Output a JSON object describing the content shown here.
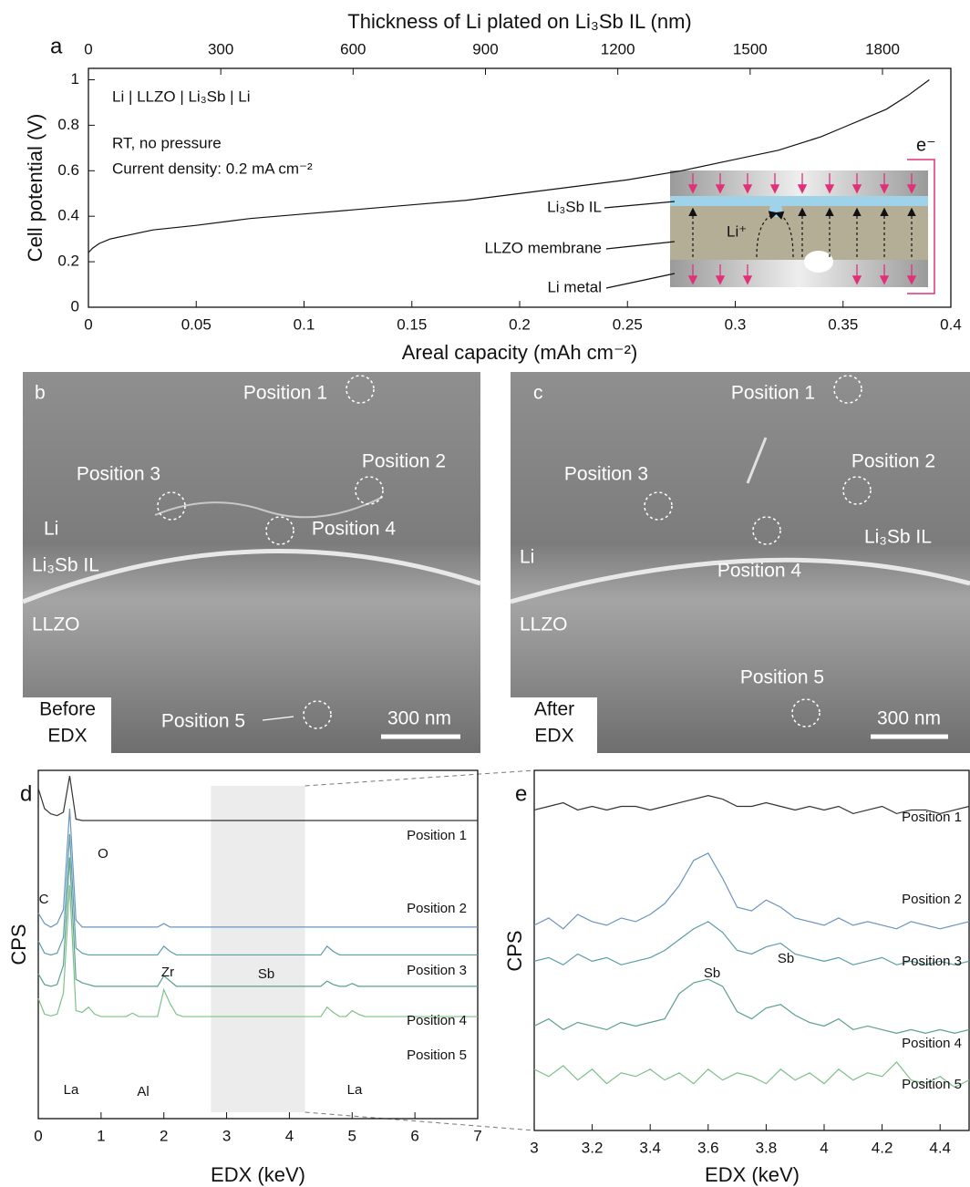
{
  "chart_data": [
    {
      "type": "line",
      "panel": "a",
      "x2label": "Thickness of Li plated on Li₃Sb IL (nm)",
      "xlabel": "Areal capacity (mAh cm⁻²)",
      "ylabel": "Cell potential (V)",
      "annotations": [
        "Li | LLZO | Li₃Sb | Li",
        "RT, no pressure",
        "Current density: 0.2 mA cm⁻²"
      ],
      "inset": {
        "labels": [
          "Li₃Sb IL",
          "LLZO membrane",
          "Li metal"
        ],
        "ion": "Li⁺",
        "electron": "e⁻"
      },
      "x": [
        0,
        0.002,
        0.005,
        0.01,
        0.02,
        0.03,
        0.05,
        0.075,
        0.1,
        0.125,
        0.15,
        0.175,
        0.2,
        0.225,
        0.25,
        0.275,
        0.3,
        0.32,
        0.34,
        0.35,
        0.36,
        0.37,
        0.38,
        0.39
      ],
      "values": [
        0.24,
        0.26,
        0.28,
        0.3,
        0.32,
        0.34,
        0.36,
        0.39,
        0.41,
        0.43,
        0.45,
        0.47,
        0.5,
        0.53,
        0.56,
        0.6,
        0.65,
        0.69,
        0.75,
        0.79,
        0.83,
        0.87,
        0.93,
        1.0
      ],
      "color": "#111111",
      "xlim": [
        0,
        0.4
      ],
      "xticks": [
        0,
        0.05,
        0.1,
        0.15,
        0.2,
        0.25,
        0.3,
        0.35,
        0.4
      ],
      "ylim": [
        0,
        1.05
      ],
      "yticks": [
        0,
        0.2,
        0.4,
        0.6,
        0.8,
        1
      ],
      "x2lim": [
        0,
        1955
      ],
      "x2ticks": [
        0,
        300,
        600,
        900,
        1200,
        1500,
        1800
      ]
    },
    {
      "type": "line",
      "panel": "d",
      "xlabel": "EDX (keV)",
      "ylabel": "CPS",
      "annotations": [
        "C",
        "O",
        "Zr",
        "Sb",
        "La",
        "Al",
        "La"
      ],
      "highlight": [
        2.75,
        4.25
      ],
      "x": [
        0,
        0.1,
        0.2,
        0.3,
        0.4,
        0.5,
        0.6,
        0.7,
        0.8,
        0.9,
        1,
        1.1,
        1.2,
        1.3,
        1.4,
        1.5,
        1.6,
        1.7,
        1.8,
        1.9,
        2,
        2.1,
        2.2,
        2.3,
        2.4,
        2.5,
        2.6,
        2.7,
        2.8,
        2.9,
        3,
        3.1,
        3.2,
        3.3,
        3.4,
        3.5,
        3.6,
        3.7,
        3.8,
        3.9,
        4,
        4.1,
        4.2,
        4.3,
        4.4,
        4.5,
        4.6,
        4.7,
        4.8,
        4.9,
        5,
        5.1,
        5.2,
        5.3,
        5.4,
        5.5,
        5.6,
        5.7,
        5.8,
        5.9,
        6,
        6.1,
        6.2,
        6.3,
        6.4,
        6.5,
        6.6,
        6.7,
        6.8,
        6.9,
        7
      ],
      "series": [
        {
          "name": "Position 1",
          "color": "#333333",
          "values": [
            94.8,
            89,
            87.5,
            87,
            88,
            98.4,
            86,
            85.6,
            85.6,
            85.6,
            85.6,
            85.6,
            85.6,
            85.6,
            85.6,
            85.6,
            85.6,
            85.6,
            85.6,
            85.6,
            85.6,
            85.6,
            85.6,
            85.6,
            85.6,
            85.6,
            85.6,
            85.6,
            85.6,
            85.6,
            85.6,
            85.6,
            85.6,
            85.6,
            85.6,
            85.6,
            85.6,
            85.6,
            85.6,
            85.6,
            85.6,
            85.6,
            85.6,
            85.6,
            85.6,
            85.6,
            85.6,
            85.6,
            85.6,
            85.6,
            85.6,
            85.6,
            85.6,
            85.6,
            85.6,
            85.6,
            85.6,
            85.6,
            85.6,
            85.6,
            85.6,
            85.6,
            85.6,
            85.6,
            85.6,
            85.6,
            85.6,
            85.6,
            85.6,
            85.6,
            85.6
          ]
        },
        {
          "name": "Position 2",
          "color": "#6a93c0",
          "values": [
            59,
            56,
            55,
            56,
            60,
            89,
            57,
            55,
            55,
            55,
            55,
            55,
            55,
            55,
            55,
            55,
            55,
            55,
            55,
            55,
            56,
            55,
            55,
            55,
            55,
            55,
            55,
            55,
            55,
            55,
            55,
            55,
            55,
            55,
            55,
            55,
            55,
            55,
            55,
            55,
            55,
            55,
            55,
            55,
            55,
            55,
            55,
            55,
            55,
            55,
            55,
            55,
            55,
            55,
            55,
            55,
            55,
            55,
            55,
            55,
            55,
            55,
            55,
            55,
            55,
            55,
            55,
            55,
            55,
            55,
            55
          ]
        },
        {
          "name": "Position 3",
          "color": "#5a9ca8",
          "values": [
            51,
            47.5,
            47,
            47.5,
            52,
            81.7,
            49,
            47.5,
            47,
            47,
            47,
            47,
            47,
            47,
            47,
            47,
            47,
            47,
            47,
            47,
            49.5,
            48,
            47,
            47,
            47,
            47,
            47,
            47,
            47,
            47,
            47,
            47,
            47,
            47,
            47,
            47,
            47,
            47,
            47,
            47,
            47,
            47,
            47,
            47,
            47,
            47,
            49.5,
            48,
            47,
            47,
            47,
            47,
            47,
            47,
            47,
            47,
            47,
            47,
            47,
            47,
            47,
            47,
            47,
            47,
            47,
            47,
            47,
            47,
            47,
            47,
            47
          ]
        },
        {
          "name": "Position 4",
          "color": "#5aa090",
          "values": [
            41.6,
            38.5,
            38,
            38.5,
            44,
            75,
            40,
            39,
            38.5,
            38,
            38,
            38,
            38,
            38,
            38,
            38,
            38,
            38,
            38,
            38,
            41,
            39.5,
            38,
            38,
            38,
            38,
            38,
            38,
            38,
            38,
            38,
            38,
            38,
            38,
            38,
            38,
            38,
            38,
            38,
            38,
            38,
            38,
            38,
            38,
            38,
            38,
            39.5,
            38.5,
            38,
            38,
            38.8,
            38,
            38,
            38,
            38,
            38,
            38,
            38,
            38,
            38,
            38,
            38,
            38,
            38,
            38,
            38,
            38,
            38,
            38,
            38,
            38
          ]
        },
        {
          "name": "Position 5",
          "color": "#7fc08a",
          "values": [
            34.5,
            30,
            29.5,
            30,
            36,
            67,
            31,
            30.5,
            32,
            30,
            29.3,
            29.3,
            29.3,
            29.3,
            29.3,
            30.3,
            29.3,
            29.3,
            29.3,
            29.3,
            37,
            33,
            30,
            29.3,
            29.3,
            29.3,
            29.3,
            29.3,
            29.3,
            29.3,
            29.3,
            29.3,
            29.3,
            29.3,
            29.3,
            29.3,
            29.3,
            29.3,
            29.3,
            29.3,
            29.3,
            29.3,
            29.3,
            29.3,
            29.3,
            29.3,
            32,
            30.5,
            29.3,
            29.3,
            31,
            30,
            29.3,
            29.3,
            29.3,
            29.3,
            29.3,
            29.3,
            29.3,
            29.3,
            29.3,
            29.3,
            29.3,
            29.3,
            29.3,
            29.3,
            29.3,
            29.3,
            29.3,
            29.3,
            29.3
          ]
        }
      ],
      "xlim": [
        0,
        7
      ],
      "xticks": [
        0,
        1,
        2,
        3,
        4,
        5,
        6,
        7
      ],
      "ylim": [
        0,
        100
      ]
    },
    {
      "type": "line",
      "panel": "e",
      "xlabel": "EDX (keV)",
      "ylabel": "CPS",
      "annotations": [
        "Sb",
        "Sb"
      ],
      "x": [
        3,
        3.05,
        3.1,
        3.15,
        3.2,
        3.25,
        3.3,
        3.35,
        3.4,
        3.45,
        3.5,
        3.55,
        3.6,
        3.65,
        3.7,
        3.75,
        3.8,
        3.85,
        3.9,
        3.95,
        4,
        4.05,
        4.1,
        4.15,
        4.2,
        4.25,
        4.3,
        4.35,
        4.4,
        4.45,
        4.5
      ],
      "series": [
        {
          "name": "Position 1",
          "color": "#333333",
          "values": [
            89,
            90,
            91,
            89,
            90,
            89,
            90,
            90,
            89,
            90,
            91,
            92,
            93,
            92,
            90,
            90,
            91,
            90,
            89,
            90,
            89,
            90,
            88,
            89,
            90,
            88,
            89,
            89,
            88,
            89,
            90
          ]
        },
        {
          "name": "Position 2",
          "color": "#6a93c0",
          "values": [
            57,
            59,
            56,
            60,
            58,
            57,
            59,
            58,
            60,
            63,
            68,
            75,
            77,
            70,
            62,
            61,
            64,
            62,
            59,
            58,
            57,
            59,
            57,
            58,
            57,
            56,
            58,
            57,
            56,
            57,
            58
          ]
        },
        {
          "name": "Position 3",
          "color": "#5a9ca8",
          "values": [
            47,
            48,
            46,
            49,
            47,
            48,
            46,
            47,
            48,
            50,
            53,
            56,
            58,
            55,
            50,
            49,
            51,
            52,
            49,
            48,
            47,
            48,
            46,
            47,
            48,
            46,
            47,
            46,
            47,
            46,
            47
          ]
        },
        {
          "name": "Position 4",
          "color": "#5aa090",
          "values": [
            29,
            31,
            28,
            30,
            29,
            28,
            30,
            29,
            30,
            31,
            38,
            41,
            42,
            40,
            33,
            31,
            34,
            35,
            32,
            30,
            29,
            31,
            28,
            29,
            28,
            27,
            28,
            27,
            28,
            27,
            28
          ]
        },
        {
          "name": "Position 5",
          "color": "#7fc08a",
          "values": [
            17,
            15,
            18,
            14,
            17,
            13,
            16,
            15,
            17,
            14,
            16,
            13,
            17,
            14,
            16,
            15,
            13,
            17,
            14,
            16,
            13,
            17,
            14,
            16,
            15,
            19,
            14,
            13,
            15,
            12,
            14
          ]
        }
      ],
      "xlim": [
        3,
        4.5
      ],
      "xticks": [
        3,
        3.2,
        3.4,
        3.6,
        3.8,
        4,
        4.2,
        4.4
      ],
      "ylim": [
        0,
        100
      ]
    }
  ],
  "sem_images": [
    {
      "panel": "b",
      "regions": [
        "Li",
        "Li₃Sb IL",
        "LLZO"
      ],
      "positions": [
        "Position 1",
        "Position 2",
        "Position 3",
        "Position 4",
        "Position 5"
      ],
      "caption": [
        "Before",
        "EDX"
      ],
      "scale_bar": "300 nm"
    },
    {
      "panel": "c",
      "regions": [
        "Li",
        "Li₃Sb IL",
        "LLZO"
      ],
      "positions": [
        "Position 1",
        "Position 2",
        "Position 3",
        "Position 4",
        "Position 5"
      ],
      "caption": [
        "After",
        "EDX"
      ],
      "scale_bar": "300 nm"
    }
  ]
}
